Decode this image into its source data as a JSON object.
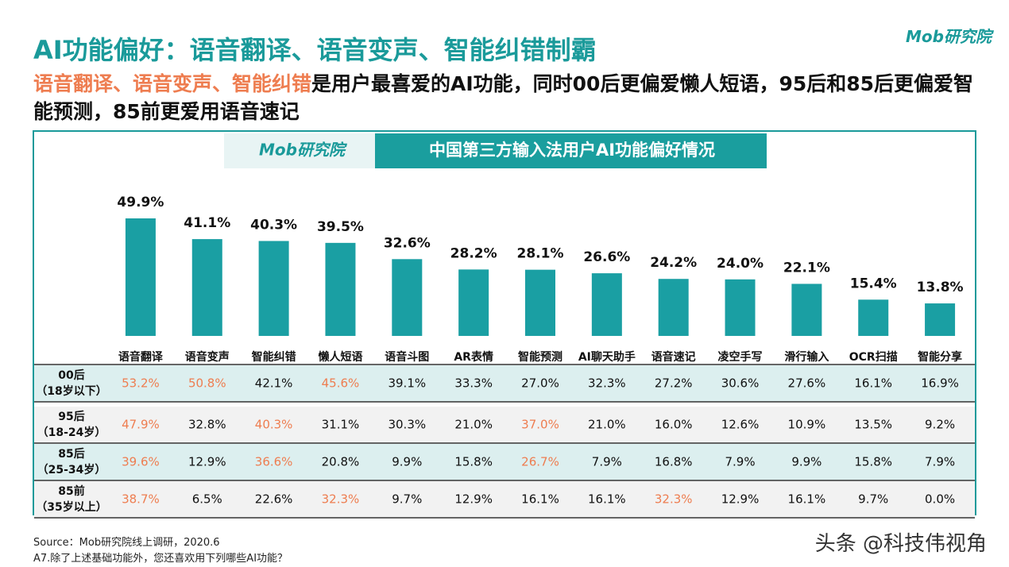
{
  "header": {
    "title": "AI功能偏好：语音翻译、语音变声、智能纠错制霸",
    "subtitle_highlight": "语音翻译、语音变声、智能纠错",
    "subtitle_rest": "是用户最喜爱的AI功能，同时00后更偏爱懒人短语，95后和85后更偏爱智能预测，85前更爱用语音速记",
    "logo": "Mob研究院"
  },
  "chart_data": {
    "type": "bar",
    "title": "中国第三方输入法用户AI功能偏好情况",
    "logo": "Mob研究院",
    "color": "#1a9fa3",
    "categories": [
      "语音翻译",
      "语音变声",
      "智能纠错",
      "懒人短语",
      "语音斗图",
      "AR表情",
      "智能预测",
      "AI聊天助手",
      "语音速记",
      "凌空手写",
      "滑行输入",
      "OCR扫描",
      "智能分享"
    ],
    "values": [
      49.9,
      41.1,
      40.3,
      39.5,
      32.6,
      28.2,
      28.1,
      26.6,
      24.2,
      24.0,
      22.1,
      15.4,
      13.8
    ],
    "value_labels": [
      "49.9%",
      "41.1%",
      "40.3%",
      "39.5%",
      "32.6%",
      "28.2%",
      "28.1%",
      "26.6%",
      "24.2%",
      "24.0%",
      "22.1%",
      "15.4%",
      "13.8%"
    ]
  },
  "table": {
    "highlight_color": "#ee7d50",
    "rows": [
      {
        "label": [
          "00后",
          "（18岁以下）"
        ],
        "cells": [
          "53.2%",
          "50.8%",
          "42.1%",
          "45.6%",
          "39.1%",
          "33.3%",
          "27.0%",
          "32.3%",
          "27.2%",
          "30.6%",
          "27.6%",
          "16.1%",
          "16.9%"
        ],
        "highlighted": [
          0,
          1,
          3
        ]
      },
      {
        "label": [
          "95后",
          "（18-24岁）"
        ],
        "cells": [
          "47.9%",
          "32.8%",
          "40.3%",
          "31.1%",
          "30.3%",
          "21.0%",
          "37.0%",
          "21.0%",
          "16.0%",
          "12.6%",
          "10.9%",
          "13.5%",
          "9.2%"
        ],
        "highlighted": [
          0,
          2,
          6
        ]
      },
      {
        "label": [
          "85后",
          "（25-34岁）"
        ],
        "cells": [
          "39.6%",
          "12.9%",
          "36.6%",
          "20.8%",
          "9.9%",
          "15.8%",
          "26.7%",
          "7.9%",
          "16.8%",
          "7.9%",
          "9.9%",
          "15.8%",
          "7.9%"
        ],
        "highlighted": [
          0,
          2,
          6
        ]
      },
      {
        "label": [
          "85前",
          "（35岁以上）"
        ],
        "cells": [
          "38.7%",
          "6.5%",
          "22.6%",
          "32.3%",
          "9.7%",
          "12.9%",
          "16.1%",
          "16.1%",
          "32.3%",
          "12.9%",
          "16.1%",
          "9.7%",
          "0.0%"
        ],
        "highlighted": [
          0,
          3,
          8
        ]
      }
    ]
  },
  "footer": {
    "source": "Source：Mob研究院线上调研，2020.6",
    "note": "A7.除了上述基础功能外，您还喜欢用下列哪些AI功能？",
    "watermark": "头条 @科技伟视角"
  }
}
